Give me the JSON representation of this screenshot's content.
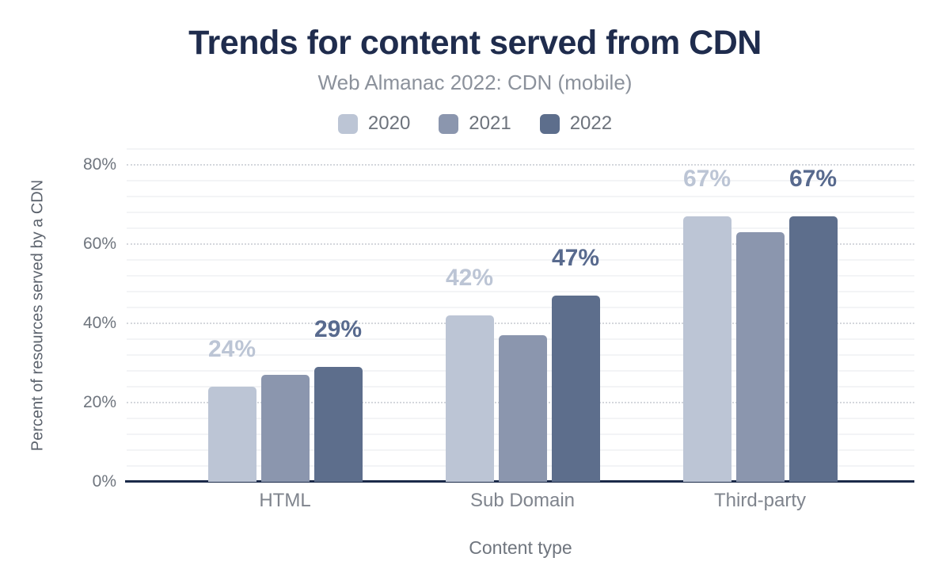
{
  "chart_data": {
    "type": "bar",
    "title": "Trends for content served from CDN",
    "subtitle": "Web Almanac 2022: CDN (mobile)",
    "xlabel": "Content type",
    "ylabel": "Percent of resources served by a CDN",
    "categories": [
      "HTML",
      "Sub Domain",
      "Third-party"
    ],
    "series": [
      {
        "name": "2020",
        "color": "#bcc5d5",
        "values": [
          24,
          42,
          67
        ],
        "data_labels": {
          "show": true,
          "color": "#bcc5d5",
          "texts": [
            "24%",
            "42%",
            "67%"
          ]
        }
      },
      {
        "name": "2021",
        "color": "#8b96ae",
        "values": [
          27,
          37,
          63
        ],
        "data_labels": {
          "show": false,
          "color": "",
          "texts": []
        }
      },
      {
        "name": "2022",
        "color": "#5d6e8c",
        "values": [
          29,
          47,
          67
        ],
        "data_labels": {
          "show": true,
          "color": "#586a8e",
          "texts": [
            "29%",
            "47%",
            "67%"
          ]
        }
      }
    ],
    "y_axis": {
      "tick_labels": [
        "0%",
        "20%",
        "40%",
        "60%",
        "80%"
      ],
      "ylim": [
        0,
        84
      ],
      "major_step": 20,
      "minor_step": 4
    },
    "legend_position": "top",
    "grid": true,
    "colors": {
      "axis_line": "#1b2a49",
      "major_grid": "#d4d7dc",
      "minor_grid": "#f3f4f6",
      "title": "#1f2c4d",
      "subtitle": "#8b919b",
      "axis_text": "#6f757e",
      "category_text": "#7f848d",
      "legend_text": "#6d737c"
    }
  }
}
